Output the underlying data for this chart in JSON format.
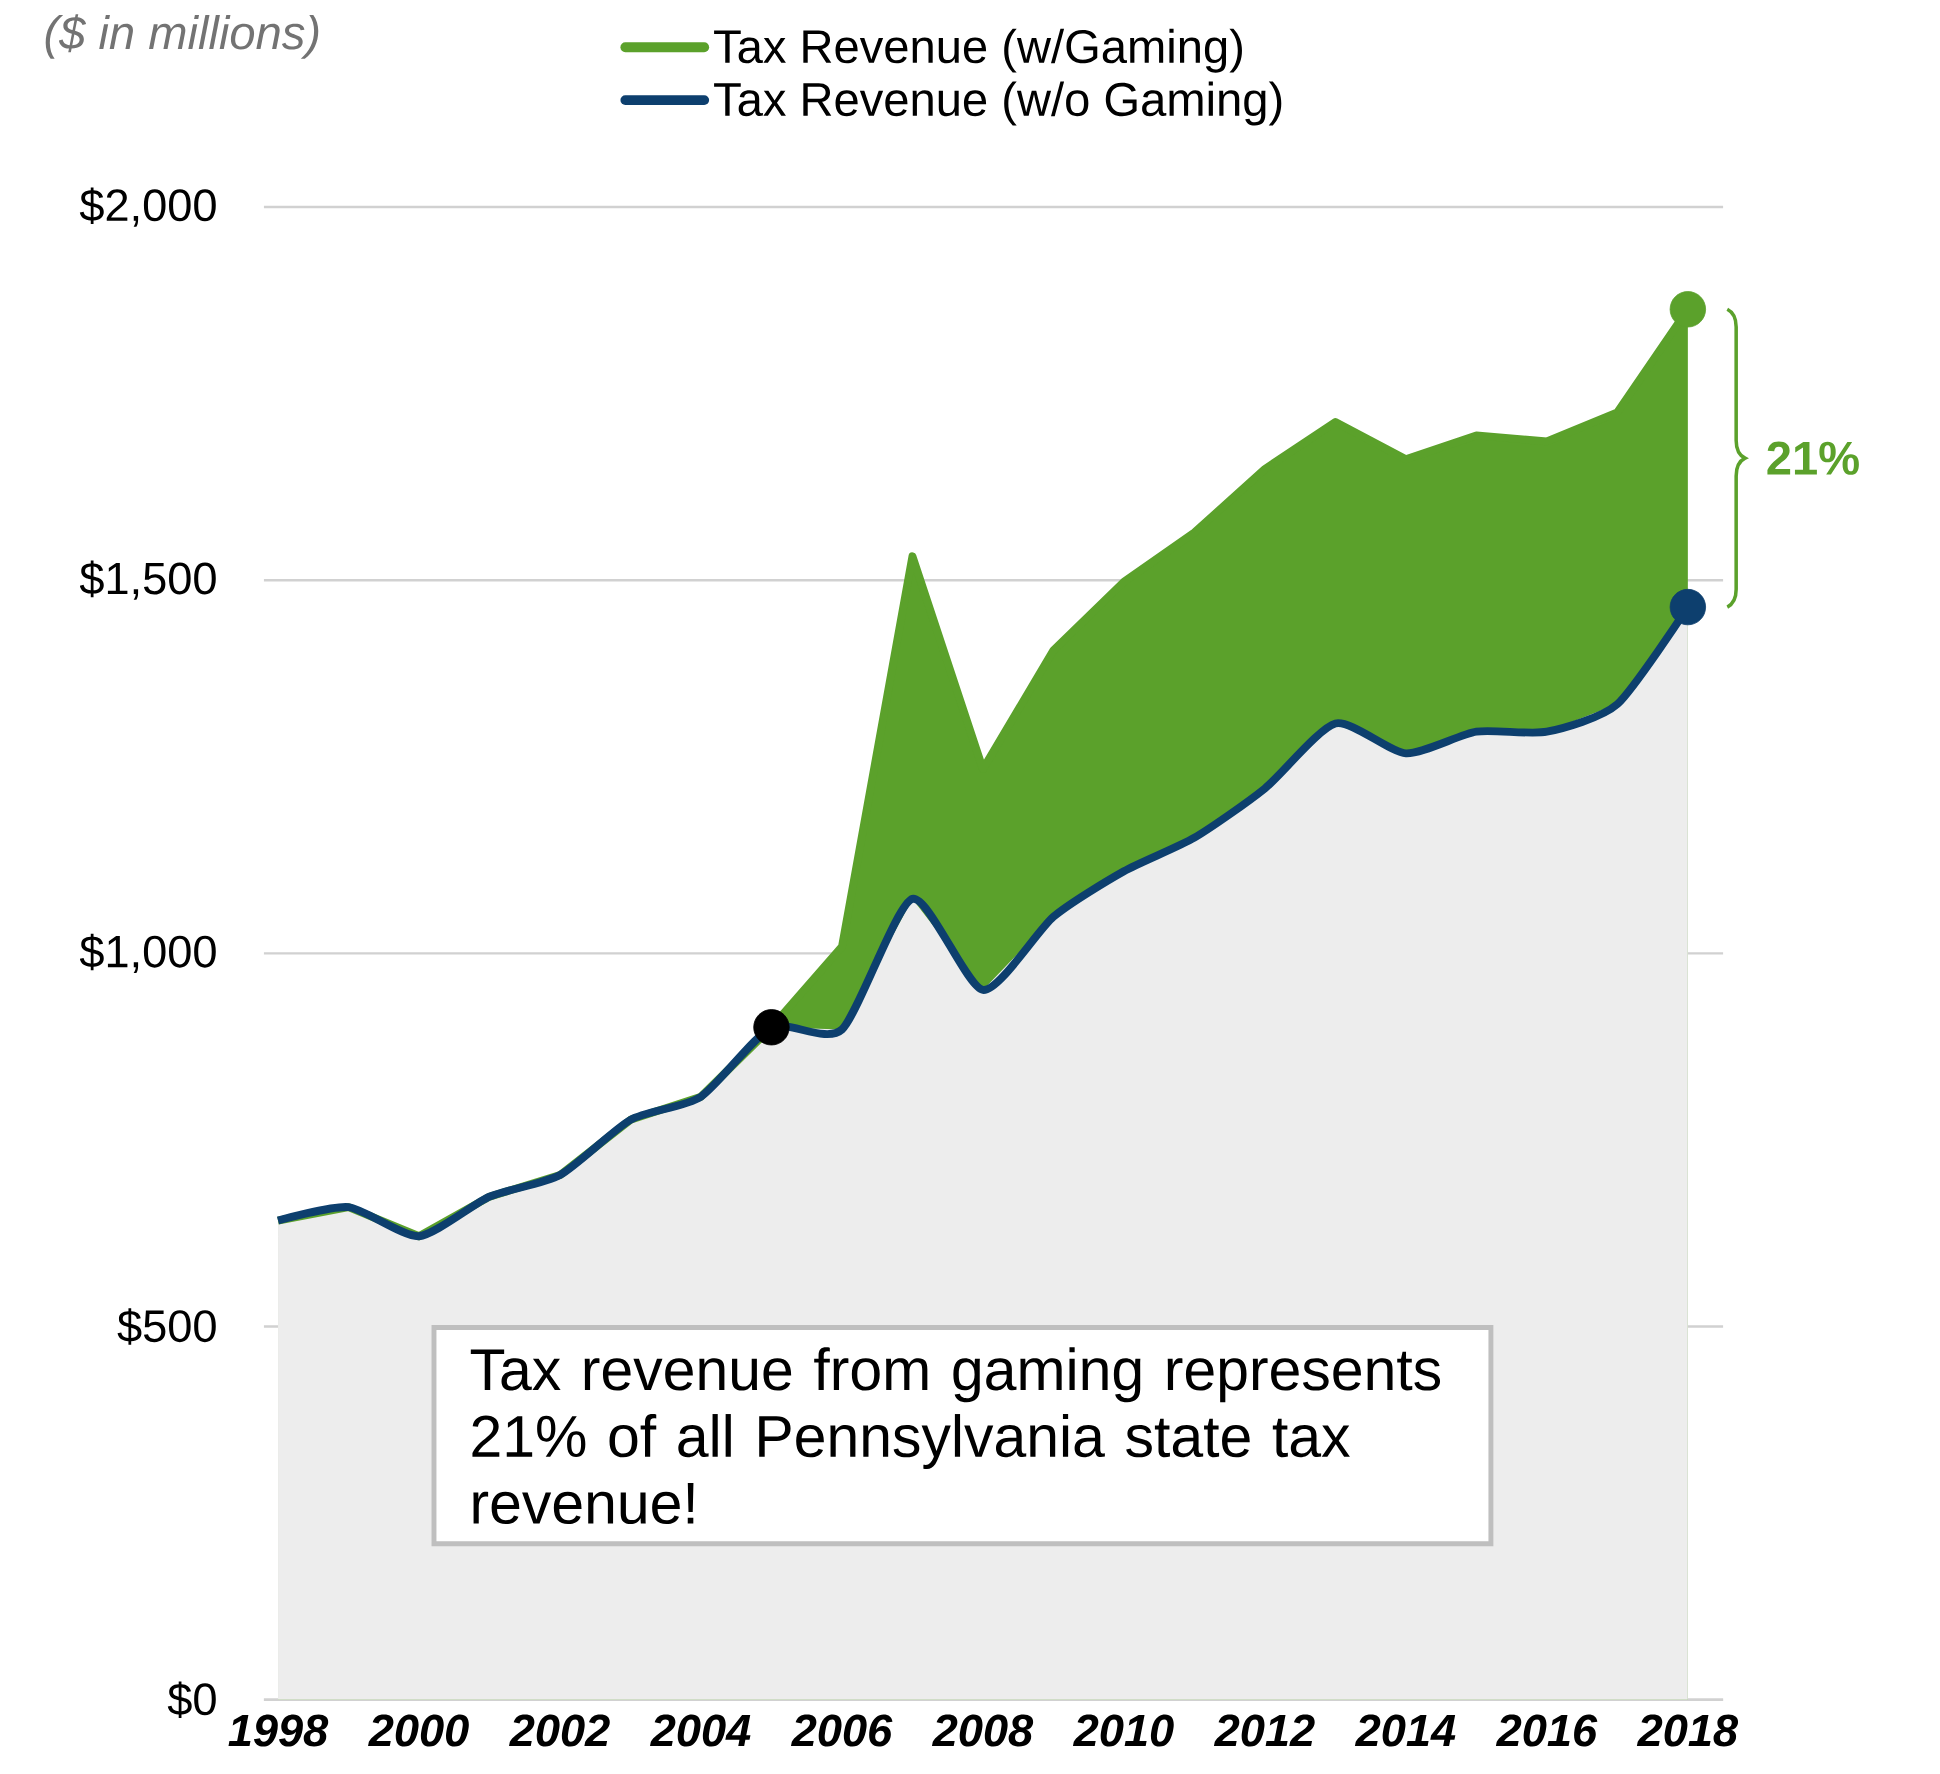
{
  "chart_data": {
    "type": "area",
    "ylabel": "($ in millions)",
    "x": [
      1998,
      1999,
      2000,
      2001,
      2002,
      2003,
      2004,
      2005,
      2006,
      2007,
      2008,
      2009,
      2010,
      2011,
      2012,
      2013,
      2014,
      2015,
      2016,
      2017,
      2018
    ],
    "series": [
      {
        "name": "Tax Revenue (w/Gaming)",
        "color": "#5ba12b",
        "values": [
          642,
          660,
          621,
          674,
          703,
          777,
          808,
          901,
          1009,
          1532,
          1247,
          1406,
          1498,
          1564,
          1649,
          1712,
          1662,
          1694,
          1686,
          1725,
          1863
        ]
      },
      {
        "name": "Tax Revenue (w/o Gaming)",
        "color": "#0d3f6e",
        "values": [
          642,
          660,
          621,
          674,
          703,
          777,
          808,
          901,
          898,
          1073,
          951,
          1049,
          1110,
          1155,
          1221,
          1308,
          1268,
          1297,
          1297,
          1334,
          1464
        ]
      },
      {
        "type": "scatter",
        "color": "#000000",
        "values": [
          null,
          null,
          null,
          null,
          null,
          null,
          null,
          901,
          null,
          null,
          null,
          null,
          null,
          null,
          null,
          null,
          null,
          null,
          null,
          null,
          null
        ]
      },
      {
        "type": "scatter",
        "color": "#5ba12b",
        "values": [
          null,
          null,
          null,
          null,
          null,
          null,
          null,
          null,
          null,
          null,
          null,
          null,
          null,
          null,
          null,
          null,
          null,
          null,
          null,
          null,
          1863
        ]
      },
      {
        "type": "scatter",
        "color": "#0d3f6e",
        "values": [
          null,
          null,
          null,
          null,
          null,
          null,
          null,
          null,
          null,
          null,
          null,
          null,
          null,
          null,
          null,
          null,
          null,
          null,
          null,
          null,
          1464
        ]
      }
    ],
    "xlim": [
      1997.8,
      2018.5
    ],
    "xticks": [
      1998,
      2000,
      2002,
      2004,
      2006,
      2008,
      2010,
      2012,
      2014,
      2016,
      2018
    ],
    "ylim": [
      0,
      2000
    ],
    "yticks": [
      {
        "value": 0,
        "label": "$0"
      },
      {
        "value": 500,
        "label": "$500"
      },
      {
        "value": 1000,
        "label": "$1,000"
      },
      {
        "value": 1500,
        "label": "$1,500"
      },
      {
        "value": 2000,
        "label": "$2,000"
      }
    ],
    "grid": "y",
    "legend": "top",
    "annotations": [
      "21%",
      "Tax revenue from gaming represents 21% of all Pennsylvania state tax revenue!"
    ]
  }
}
